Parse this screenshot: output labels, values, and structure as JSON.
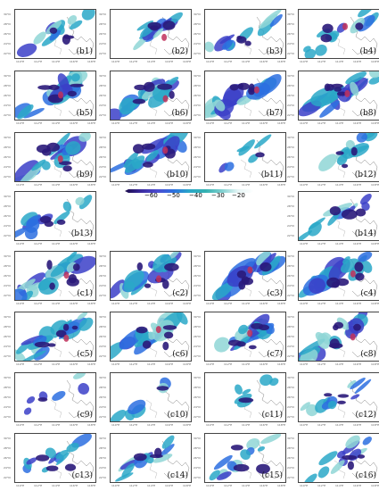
{
  "panels": [
    {
      "label": "(b1)"
    },
    {
      "label": "(b2)"
    },
    {
      "label": "(b3)"
    },
    {
      "label": "(b4)"
    },
    {
      "label": "(b5)"
    },
    {
      "label": "(b6)"
    },
    {
      "label": "(b7)"
    },
    {
      "label": "(b8)"
    },
    {
      "label": "(b9)"
    },
    {
      "label": "(b10)"
    },
    {
      "label": "(b11)"
    },
    {
      "label": "(b12)"
    },
    {
      "label": "(b13)"
    },
    {
      "label": "(b14)"
    },
    {
      "label": "(c1)"
    },
    {
      "label": "(c2)"
    },
    {
      "label": "(c3)"
    },
    {
      "label": "(c4)"
    },
    {
      "label": "(c5)"
    },
    {
      "label": "(c6)"
    },
    {
      "label": "(c7)"
    },
    {
      "label": "(c8)"
    },
    {
      "label": "(c9)"
    },
    {
      "label": "(c10)"
    },
    {
      "label": "(c11)"
    },
    {
      "label": "(c12)"
    },
    {
      "label": "(c13)"
    },
    {
      "label": "(c14)"
    },
    {
      "label": "(c15)"
    },
    {
      "label": "(c16)"
    }
  ],
  "colorbar": {
    "ticks": [
      "−60",
      "−50",
      "−40",
      "−30",
      "−20"
    ]
  },
  "axis_ticks": {
    "lat": [
      "30°N",
      "28°N",
      "26°N",
      "24°N",
      "22°N"
    ],
    "lon": [
      "110°E",
      "112°E",
      "114°E",
      "116°E",
      "118°E"
    ]
  },
  "colors": {
    "deep": "#2a1a7a",
    "blue": "#3b3fc8",
    "mid": "#2b6fe0",
    "teal": "#2aa8c8",
    "light": "#8fd6d6",
    "core": "#c0305a"
  }
}
